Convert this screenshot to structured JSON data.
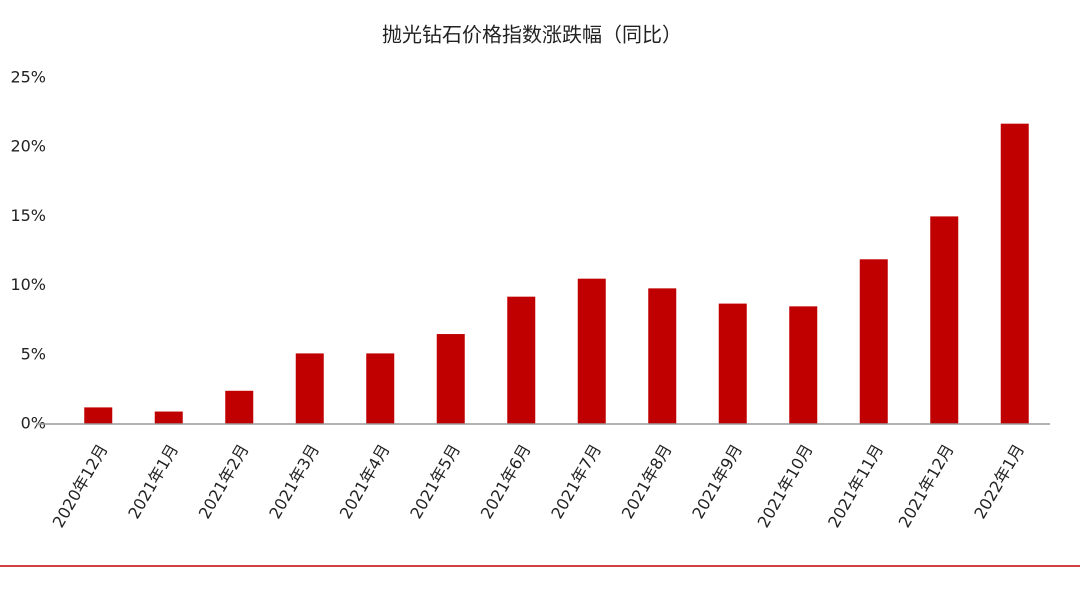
{
  "chart_data": {
    "type": "bar",
    "title": "抛光钻石价格指数涨跌幅（同比）",
    "categories": [
      "2020年12月",
      "2021年1月",
      "2021年2月",
      "2021年3月",
      "2021年4月",
      "2021年5月",
      "2021年6月",
      "2021年7月",
      "2021年8月",
      "2021年9月",
      "2021年10月",
      "2021年11月",
      "2021年12月",
      "2022年1月"
    ],
    "values": [
      1.2,
      0.9,
      2.4,
      5.1,
      5.1,
      6.5,
      9.2,
      10.5,
      9.8,
      8.7,
      8.5,
      11.9,
      15.0,
      21.7
    ],
    "color": "#c00000",
    "ylim": [
      0,
      25
    ],
    "yticks": [
      {
        "value": 0,
        "label": "0%"
      },
      {
        "value": 5,
        "label": "5%"
      },
      {
        "value": 10,
        "label": "10%"
      },
      {
        "value": 15,
        "label": "15%"
      },
      {
        "value": 20,
        "label": "20%"
      },
      {
        "value": 25,
        "label": "25%"
      }
    ],
    "grid": false
  }
}
